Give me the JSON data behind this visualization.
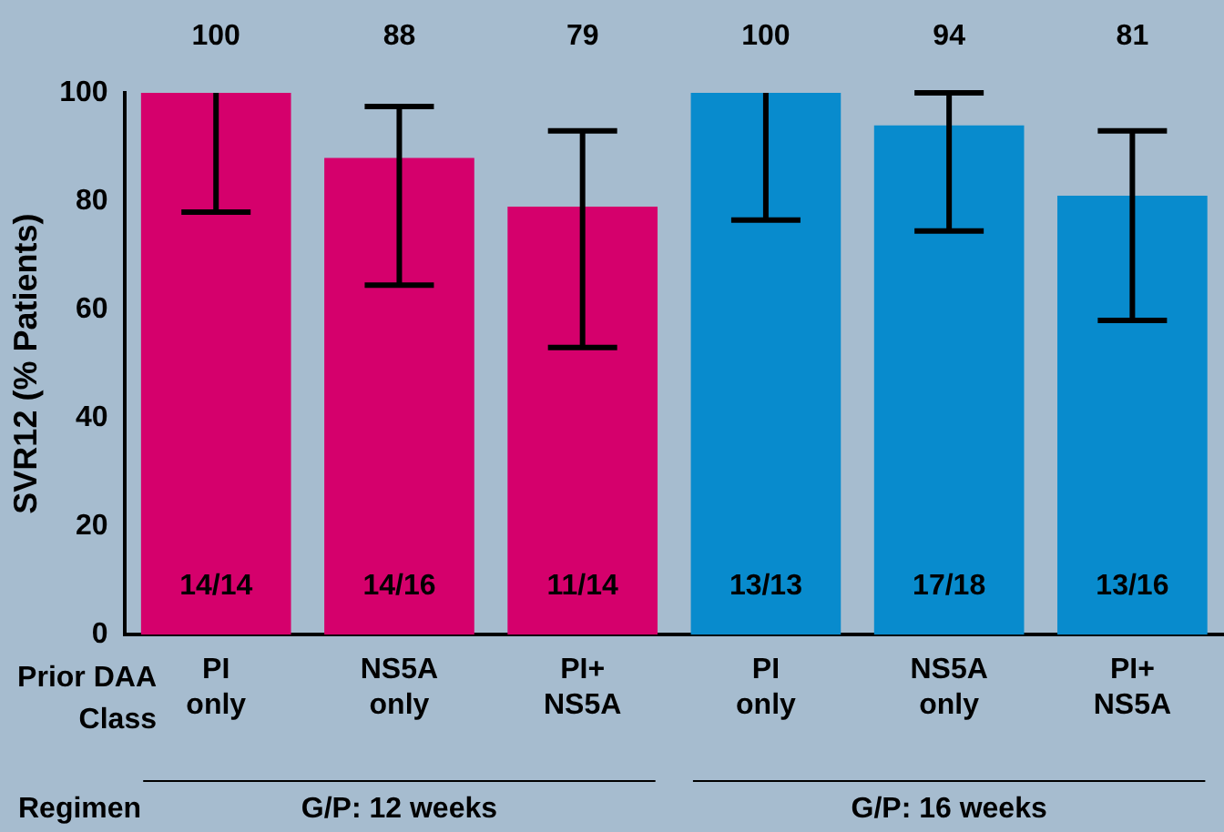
{
  "chart_data": {
    "type": "bar",
    "ylabel": "SVR12 (% Patients)",
    "xlabel": "Prior DAA Class",
    "categories": [
      "PI only",
      "NS5A only",
      "PI+ NS5A",
      "PI only",
      "NS5A only",
      "PI+ NS5A"
    ],
    "values": [
      100,
      88,
      79,
      100,
      94,
      81
    ],
    "colors": [
      "#d5006c",
      "#d5006c",
      "#d5006c",
      "#088bcd",
      "#088bcd",
      "#088bcd"
    ],
    "errors": [
      [
        78,
        100
      ],
      [
        64.5,
        97.5
      ],
      [
        53,
        93
      ],
      [
        76.5,
        100
      ],
      [
        74.5,
        100
      ],
      [
        58,
        93
      ]
    ],
    "value_labels": [
      "100",
      "88",
      "79",
      "100",
      "94",
      "81"
    ],
    "ylim": [
      0,
      100
    ],
    "yticks": [
      0,
      20,
      40,
      60,
      80,
      100
    ],
    "grid": false,
    "legend": false,
    "annotations": [
      "14/14",
      "14/16",
      "11/14",
      "13/13",
      "17/18",
      "13/16",
      "Regimen",
      "G/P: 12 weeks",
      "G/P: 16 weeks"
    ]
  }
}
